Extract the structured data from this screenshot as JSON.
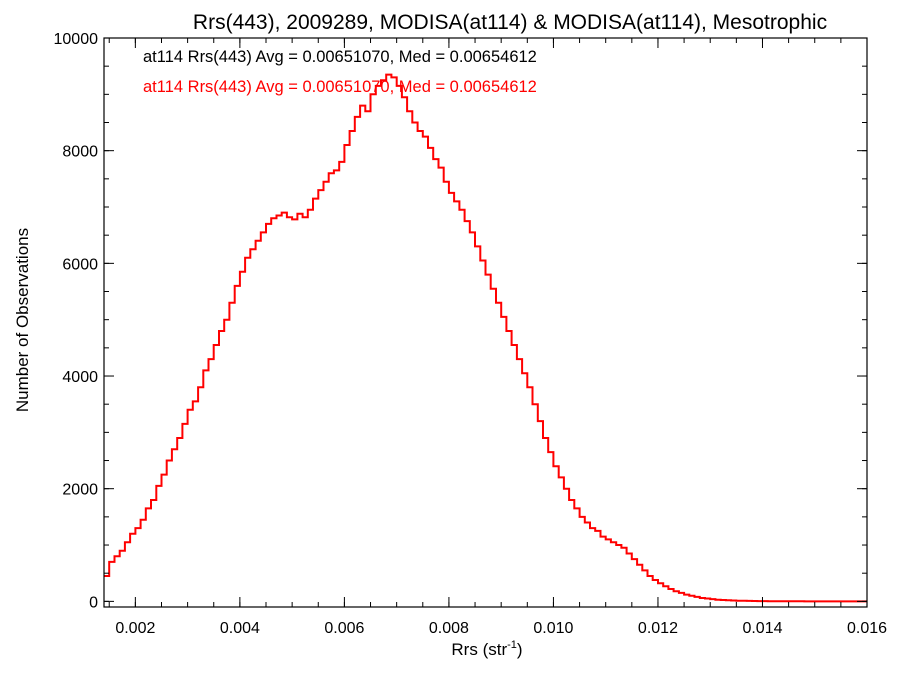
{
  "chart_data": {
    "type": "line",
    "style": "step-histogram",
    "title": "Rrs(443), 2009289, MODISA(at114) & MODISA(at114), Mesotrophic",
    "xlabel": "Rrs (str",
    "xlabel_sup": "-1",
    "xlabel_close": ")",
    "ylabel": "Number of Observations",
    "xlim": [
      0.0014,
      0.016
    ],
    "ylim": [
      -100,
      10000
    ],
    "x_ticks": [
      {
        "value": 0.002,
        "label": "0.002"
      },
      {
        "value": 0.004,
        "label": "0.004"
      },
      {
        "value": 0.006,
        "label": "0.006"
      },
      {
        "value": 0.008,
        "label": "0.008"
      },
      {
        "value": 0.01,
        "label": "0.010"
      },
      {
        "value": 0.012,
        "label": "0.012"
      },
      {
        "value": 0.014,
        "label": "0.014"
      },
      {
        "value": 0.016,
        "label": "0.016"
      }
    ],
    "y_ticks": [
      {
        "value": 0,
        "label": "0"
      },
      {
        "value": 2000,
        "label": "2000"
      },
      {
        "value": 4000,
        "label": "4000"
      },
      {
        "value": 6000,
        "label": "6000"
      },
      {
        "value": 8000,
        "label": "8000"
      },
      {
        "value": 10000,
        "label": "10000"
      }
    ],
    "x_minor_ticks_per_major": 4,
    "y_minor_ticks_per_major": 4,
    "grid": false,
    "annotations": [
      {
        "text": "at114 Rrs(443) Avg = 0.00651070, Med = 0.00654612",
        "color": "#000000"
      },
      {
        "text": "at114 Rrs(443) Avg = 0.00651070, Med = 0.00654612",
        "color": "#ff0000"
      }
    ],
    "series": [
      {
        "color": "#ff0000",
        "points": [
          [
            0.0014,
            450
          ],
          [
            0.0015,
            700
          ],
          [
            0.0016,
            800
          ],
          [
            0.0017,
            900
          ],
          [
            0.0018,
            1050
          ],
          [
            0.0019,
            1200
          ],
          [
            0.002,
            1300
          ],
          [
            0.0021,
            1450
          ],
          [
            0.0022,
            1650
          ],
          [
            0.0023,
            1800
          ],
          [
            0.0024,
            2050
          ],
          [
            0.0025,
            2250
          ],
          [
            0.0026,
            2500
          ],
          [
            0.0027,
            2700
          ],
          [
            0.0028,
            2900
          ],
          [
            0.0029,
            3150
          ],
          [
            0.003,
            3400
          ],
          [
            0.0031,
            3550
          ],
          [
            0.0032,
            3800
          ],
          [
            0.0033,
            4100
          ],
          [
            0.0034,
            4300
          ],
          [
            0.0035,
            4550
          ],
          [
            0.0036,
            4800
          ],
          [
            0.0037,
            5000
          ],
          [
            0.0038,
            5300
          ],
          [
            0.0039,
            5600
          ],
          [
            0.004,
            5850
          ],
          [
            0.0041,
            6100
          ],
          [
            0.0042,
            6250
          ],
          [
            0.0043,
            6400
          ],
          [
            0.0044,
            6550
          ],
          [
            0.0045,
            6700
          ],
          [
            0.0046,
            6800
          ],
          [
            0.0047,
            6850
          ],
          [
            0.0048,
            6900
          ],
          [
            0.0049,
            6820
          ],
          [
            0.005,
            6780
          ],
          [
            0.0051,
            6880
          ],
          [
            0.0052,
            6820
          ],
          [
            0.0053,
            6950
          ],
          [
            0.0054,
            7150
          ],
          [
            0.0055,
            7300
          ],
          [
            0.0056,
            7450
          ],
          [
            0.0057,
            7600
          ],
          [
            0.0058,
            7650
          ],
          [
            0.0059,
            7800
          ],
          [
            0.006,
            8100
          ],
          [
            0.0061,
            8350
          ],
          [
            0.0062,
            8600
          ],
          [
            0.0063,
            8800
          ],
          [
            0.0064,
            8700
          ],
          [
            0.0065,
            9000
          ],
          [
            0.0066,
            9150
          ],
          [
            0.0067,
            9250
          ],
          [
            0.0068,
            9350
          ],
          [
            0.0069,
            9300
          ],
          [
            0.007,
            9150
          ],
          [
            0.0071,
            8950
          ],
          [
            0.0072,
            8700
          ],
          [
            0.0073,
            8500
          ],
          [
            0.0074,
            8350
          ],
          [
            0.0075,
            8250
          ],
          [
            0.0076,
            8050
          ],
          [
            0.0077,
            7850
          ],
          [
            0.0078,
            7700
          ],
          [
            0.0079,
            7450
          ],
          [
            0.008,
            7250
          ],
          [
            0.0081,
            7100
          ],
          [
            0.0082,
            6950
          ],
          [
            0.0083,
            6750
          ],
          [
            0.0084,
            6550
          ],
          [
            0.0085,
            6300
          ],
          [
            0.0086,
            6050
          ],
          [
            0.0087,
            5800
          ],
          [
            0.0088,
            5550
          ],
          [
            0.0089,
            5300
          ],
          [
            0.009,
            5050
          ],
          [
            0.0091,
            4800
          ],
          [
            0.0092,
            4550
          ],
          [
            0.0093,
            4300
          ],
          [
            0.0094,
            4050
          ],
          [
            0.0095,
            3800
          ],
          [
            0.0096,
            3500
          ],
          [
            0.0097,
            3200
          ],
          [
            0.0098,
            2900
          ],
          [
            0.0099,
            2650
          ],
          [
            0.01,
            2400
          ],
          [
            0.0101,
            2200
          ],
          [
            0.0102,
            2000
          ],
          [
            0.0103,
            1800
          ],
          [
            0.0104,
            1650
          ],
          [
            0.0105,
            1500
          ],
          [
            0.0106,
            1400
          ],
          [
            0.0107,
            1300
          ],
          [
            0.0108,
            1250
          ],
          [
            0.0109,
            1150
          ],
          [
            0.011,
            1100
          ],
          [
            0.0111,
            1050
          ],
          [
            0.0112,
            1000
          ],
          [
            0.0113,
            950
          ],
          [
            0.0114,
            850
          ],
          [
            0.0115,
            750
          ],
          [
            0.0116,
            650
          ],
          [
            0.0117,
            550
          ],
          [
            0.0118,
            450
          ],
          [
            0.0119,
            380
          ],
          [
            0.012,
            320
          ],
          [
            0.0121,
            270
          ],
          [
            0.0122,
            220
          ],
          [
            0.0123,
            180
          ],
          [
            0.0124,
            150
          ],
          [
            0.0125,
            120
          ],
          [
            0.0126,
            100
          ],
          [
            0.0127,
            80
          ],
          [
            0.0128,
            60
          ],
          [
            0.0129,
            50
          ],
          [
            0.013,
            40
          ],
          [
            0.0131,
            30
          ],
          [
            0.0132,
            25
          ],
          [
            0.0133,
            20
          ],
          [
            0.0134,
            15
          ],
          [
            0.0135,
            12
          ],
          [
            0.0136,
            10
          ],
          [
            0.0137,
            8
          ],
          [
            0.0138,
            6
          ],
          [
            0.0139,
            5
          ],
          [
            0.014,
            4
          ],
          [
            0.0141,
            3
          ],
          [
            0.0142,
            2
          ],
          [
            0.0143,
            2
          ],
          [
            0.0144,
            1
          ],
          [
            0.0146,
            1
          ],
          [
            0.0148,
            0
          ],
          [
            0.015,
            0
          ],
          [
            0.0152,
            0
          ],
          [
            0.0154,
            0
          ],
          [
            0.0156,
            0
          ],
          [
            0.0158,
            0
          ],
          [
            0.016,
            0
          ]
        ]
      }
    ]
  }
}
